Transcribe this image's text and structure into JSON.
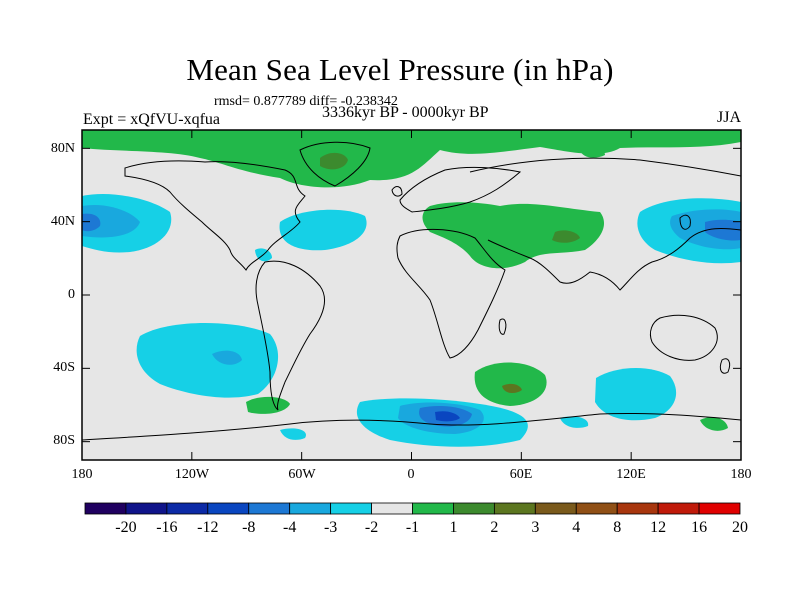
{
  "title": "Mean Sea Level Pressure (in hPa)",
  "stats_line": "rmsd= 0.877789  diff= -0.238342",
  "experiment_label": "Expt = xQfVU-xqfua",
  "period_label": "3336kyr BP - 0000kyr BP",
  "season_label": "JJA",
  "map": {
    "projection": "cylindrical equidistant",
    "lon_range": [
      -180,
      180
    ],
    "lat_range": [
      -90,
      90
    ],
    "y_ticks": [
      "80N",
      "40N",
      "0",
      "40S",
      "80S"
    ],
    "x_ticks": [
      "180",
      "120W",
      "60W",
      "0",
      "60E",
      "120E",
      "180"
    ],
    "background_color": "#e6e6e6",
    "coastline_color": "#000000"
  },
  "colorbar": {
    "colors": [
      "#200060",
      "#10148a",
      "#0c2aa6",
      "#0a46c0",
      "#1d78d4",
      "#19a8de",
      "#16d0e6",
      "#e6e6e6",
      "#22b84a",
      "#3c8a2e",
      "#5c7620",
      "#7a5a1c",
      "#905016",
      "#a8360e",
      "#c01a0a",
      "#e00000"
    ],
    "labels": [
      "-20",
      "-16",
      "-12",
      "-8",
      "-4",
      "-3",
      "-2",
      "-1",
      "1",
      "2",
      "3",
      "4",
      "8",
      "12",
      "16",
      "20"
    ]
  }
}
